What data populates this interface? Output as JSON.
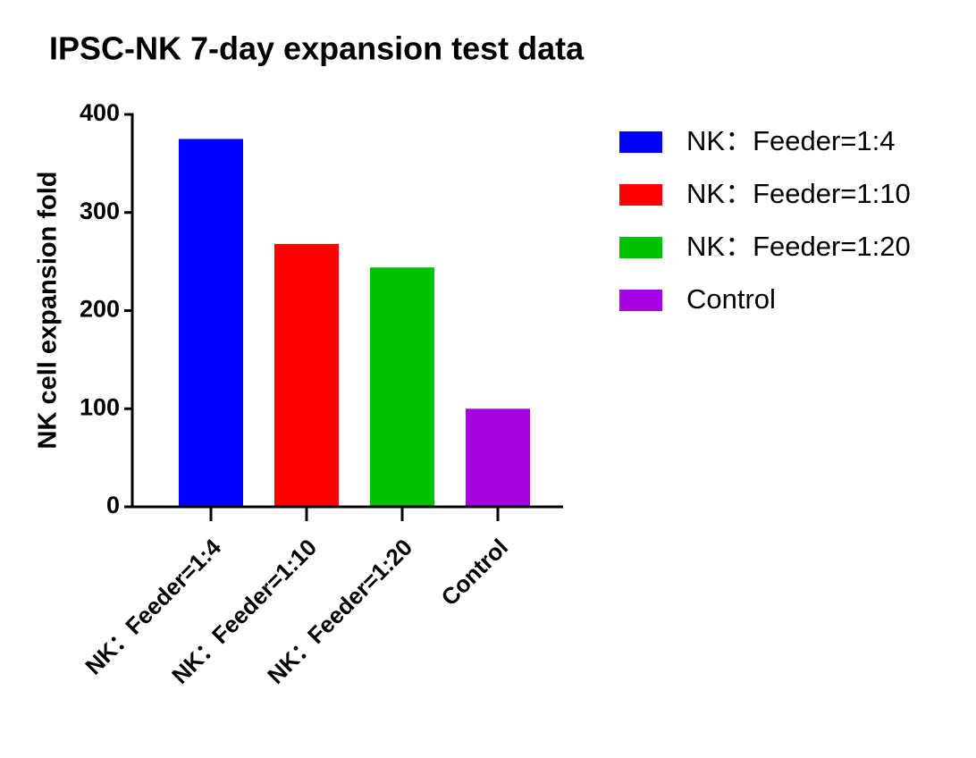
{
  "chart_data": {
    "type": "bar",
    "title": "IPSC-NK 7-day expansion test data",
    "y_label": "NK cell expansion fold",
    "categories": [
      "NK：Feeder=1:4",
      "NK：Feeder=1:10",
      "NK：Feeder=1:20",
      "Control"
    ],
    "values": [
      375,
      268,
      244,
      100
    ],
    "colors": [
      "#0000ff",
      "#ff0000",
      "#00c000",
      "#a500e0"
    ],
    "ylim": [
      0,
      400
    ],
    "yticks": [
      0,
      100,
      200,
      300,
      400
    ],
    "legend": "right"
  }
}
